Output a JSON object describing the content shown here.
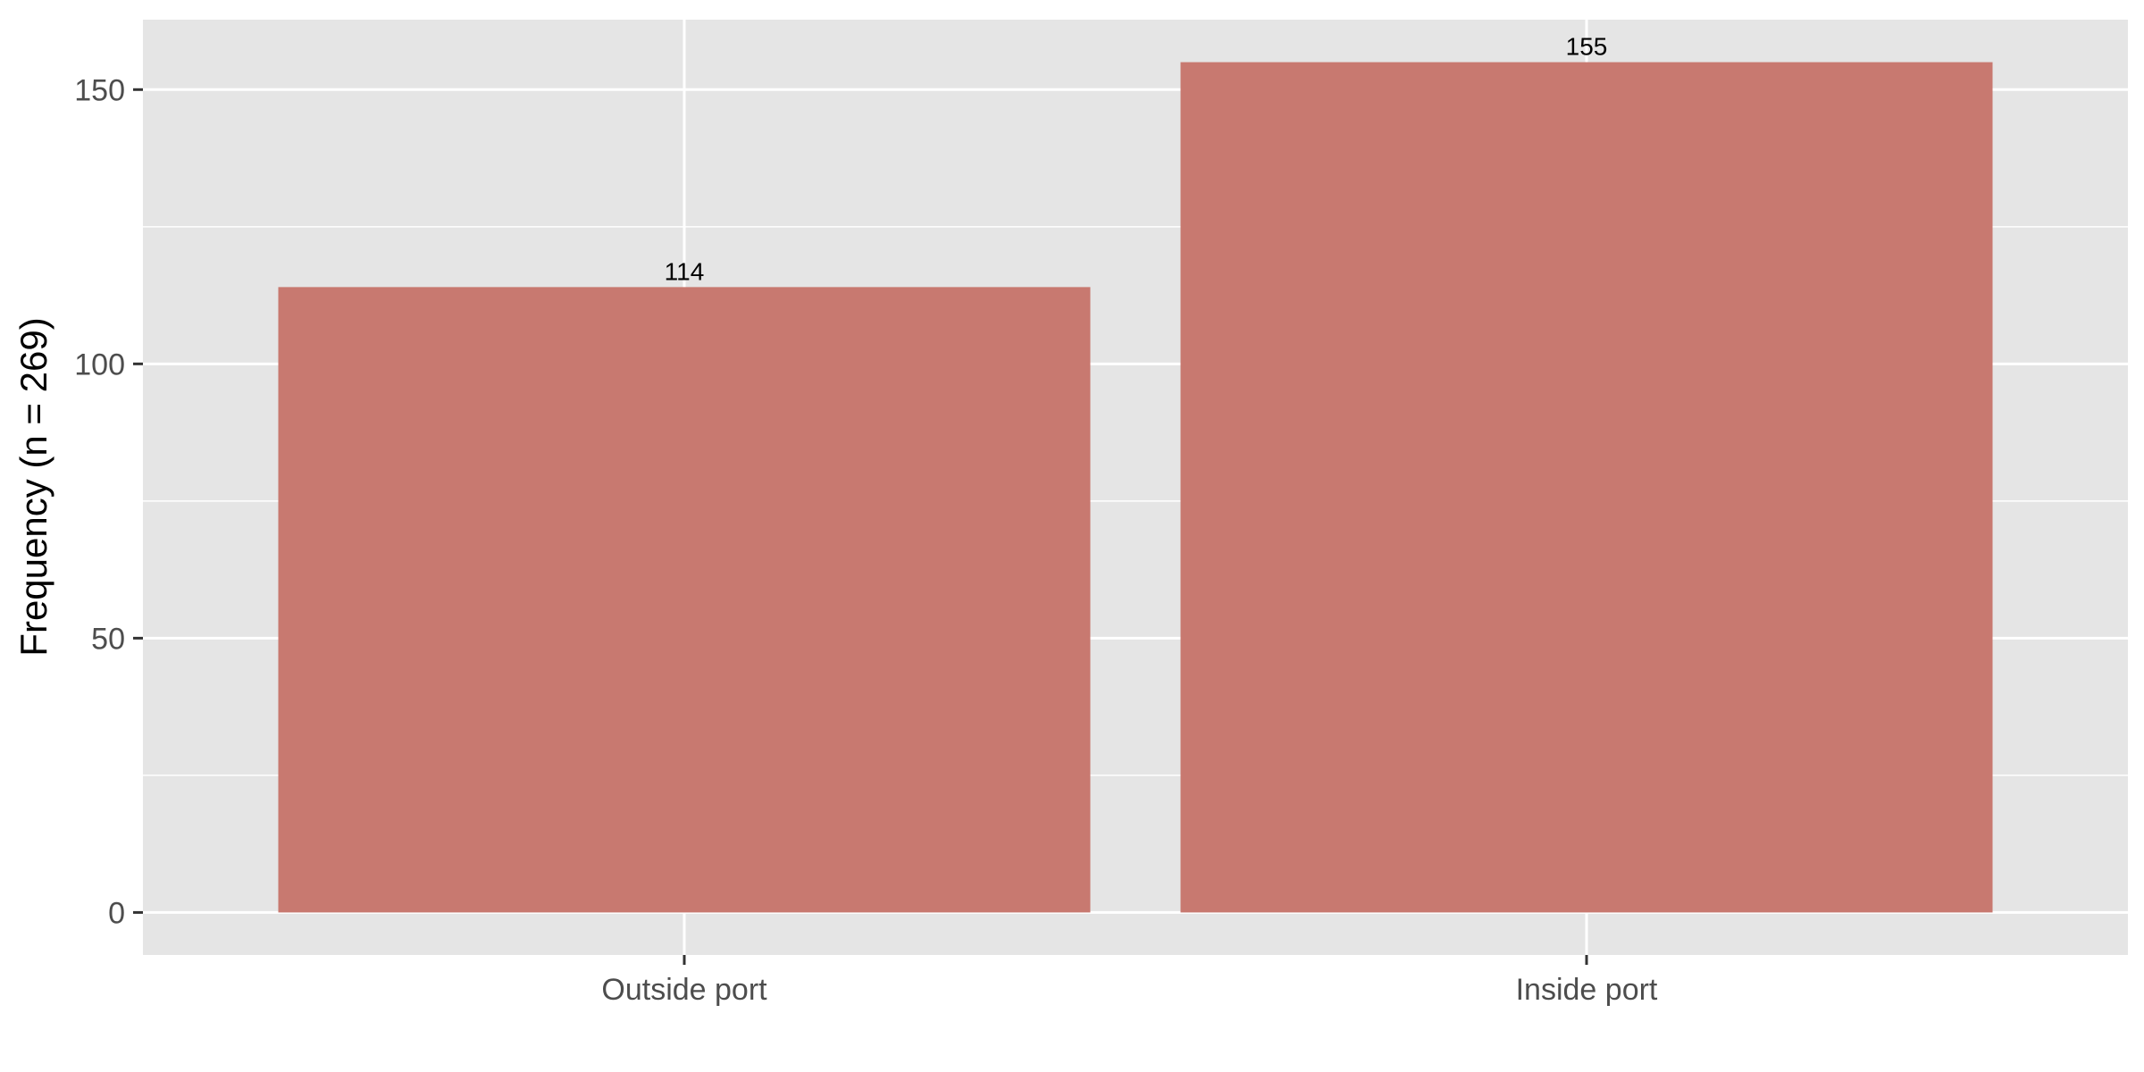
{
  "chart_data": {
    "type": "bar",
    "title": "",
    "xlabel": "",
    "ylabel": "Frequency (n = 269)",
    "categories": [
      "Outside port",
      "Inside port"
    ],
    "values": [
      114,
      155
    ],
    "data_labels": [
      "114",
      "155"
    ],
    "ylim": [
      -7.75,
      162.75
    ],
    "yticks": [
      0,
      50,
      100,
      150
    ],
    "ytick_labels": [
      "0",
      "50",
      "100",
      "150"
    ],
    "grid": true,
    "legend": "none",
    "colors": {
      "bar": "#c87970",
      "panel": "#e5e5e5",
      "grid": "#ffffff",
      "tick": "#333333"
    }
  }
}
